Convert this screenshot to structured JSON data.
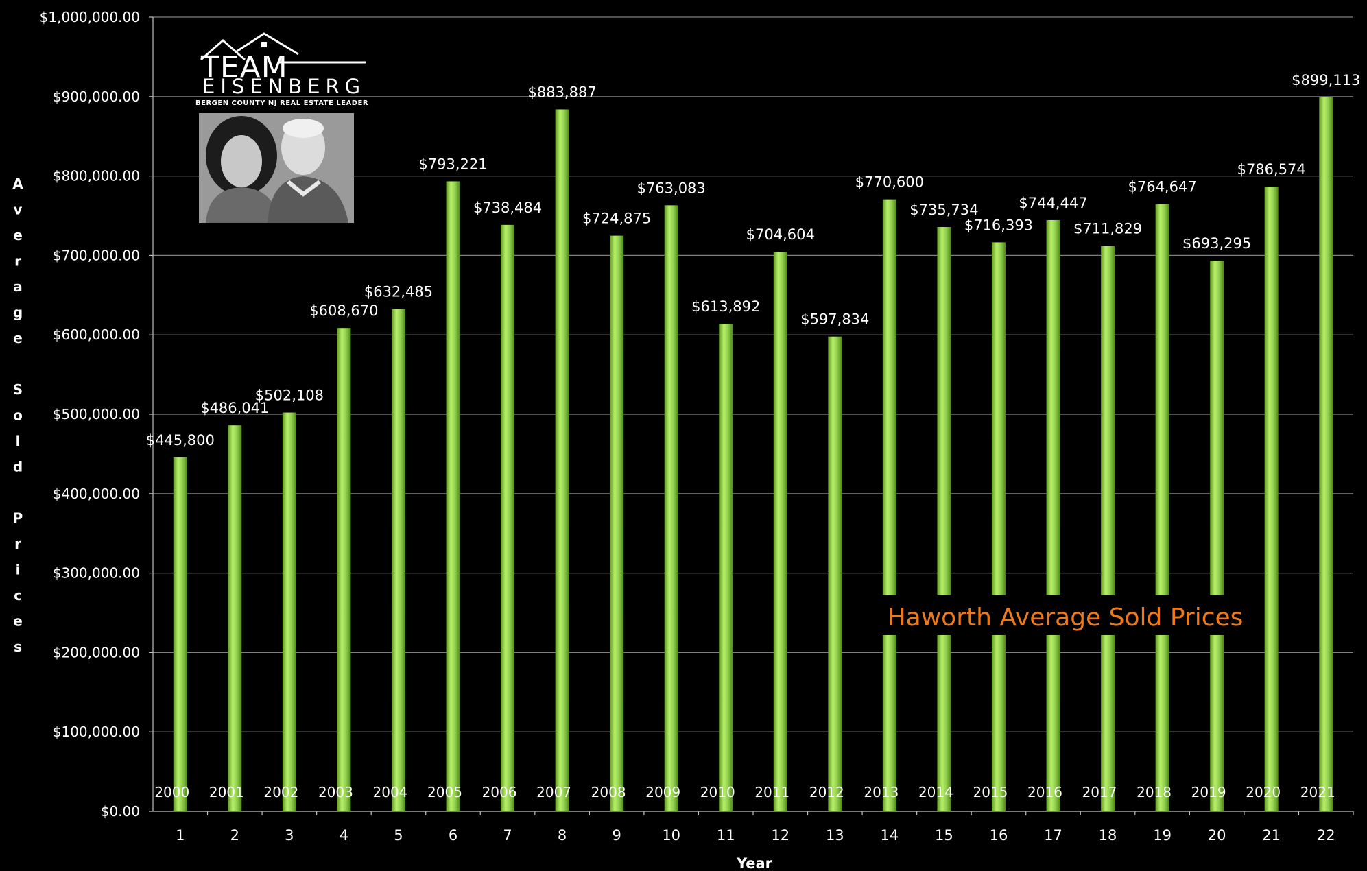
{
  "logo": {
    "team": "TEAM",
    "name": "EISENBERG",
    "tagline": "BERGEN COUNTY NJ REAL ESTATE LEADER"
  },
  "overlay_title": "Haworth Average Sold Prices",
  "colors": {
    "background": "#000000",
    "bar": "#92d050",
    "overlay": "#ec7a1c",
    "grid": "#808080"
  },
  "chart_data": {
    "type": "bar",
    "title": "",
    "overlay_text": "Haworth Average Sold Prices",
    "xlabel": "Year",
    "ylabel": "Average Sold Prices",
    "categories": [
      "1",
      "2",
      "3",
      "4",
      "5",
      "6",
      "7",
      "8",
      "9",
      "10",
      "11",
      "12",
      "13",
      "14",
      "15",
      "16",
      "17",
      "18",
      "19",
      "20",
      "21",
      "22"
    ],
    "year_labels": [
      "2000",
      "2001",
      "2002",
      "2003",
      "2004",
      "2005",
      "2006",
      "2007",
      "2008",
      "2009",
      "2010",
      "2011",
      "2012",
      "2013",
      "2014",
      "2015",
      "2016",
      "2017",
      "2018",
      "2019",
      "2020",
      "2021"
    ],
    "values": [
      445800,
      486041,
      502108,
      608670,
      632485,
      793221,
      738484,
      883887,
      724875,
      763083,
      613892,
      704604,
      597834,
      770600,
      735734,
      716393,
      744447,
      711829,
      764647,
      693295,
      786574,
      899113
    ],
    "data_labels": [
      "$445,800",
      "$486,041",
      "$502,108",
      "$608,670",
      "$632,485",
      "$793,221",
      "$738,484",
      "$883,887",
      "$724,875",
      "$763,083",
      "$613,892",
      "$704,604",
      "$597,834",
      "$770,600",
      "$735,734",
      "$716,393",
      "$744,447",
      "$711,829",
      "$764,647",
      "$693,295",
      "$786,574",
      "$899,113"
    ],
    "y_ticks": [
      "$0.00",
      "$100,000.00",
      "$200,000.00",
      "$300,000.00",
      "$400,000.00",
      "$500,000.00",
      "$600,000.00",
      "$700,000.00",
      "$800,000.00",
      "$900,000.00",
      "$1,000,000.00"
    ],
    "ylim": [
      0,
      1000000
    ],
    "grid": true,
    "legend": "none"
  }
}
